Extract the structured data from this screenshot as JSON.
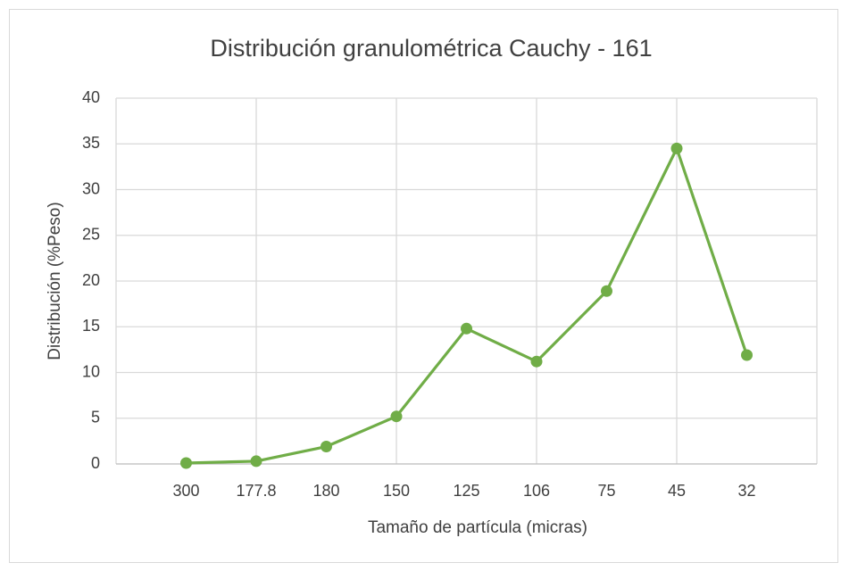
{
  "chart_data": {
    "type": "line",
    "title": "Distribución granulométrica Cauchy - 161",
    "x_label": "Tamaño de partícula (micras)",
    "y_label": "Distribución (%Peso)",
    "categories": [
      null,
      "300",
      "177.8",
      "180",
      "150",
      "125",
      "106",
      "75",
      "45",
      "32",
      null
    ],
    "series": [
      {
        "name": "Distribución",
        "color": "#70ad47",
        "values": [
          null,
          0.1,
          0.3,
          1.9,
          5.2,
          14.8,
          11.2,
          18.9,
          34.5,
          11.9,
          null
        ]
      }
    ],
    "ylim": [
      0,
      40
    ],
    "yticks": [
      0,
      5,
      10,
      15,
      20,
      25,
      30,
      35,
      40
    ],
    "grid": true
  }
}
